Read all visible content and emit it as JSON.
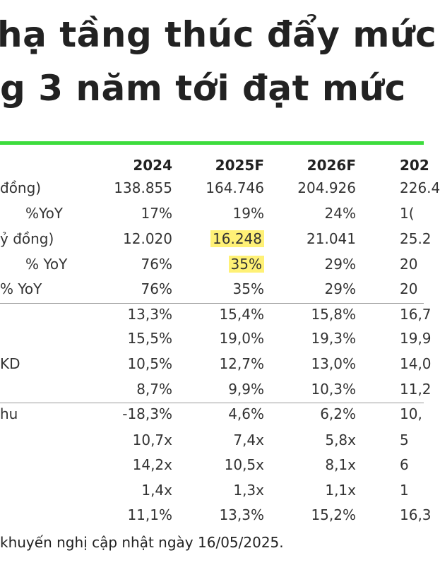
{
  "title_lines": [
    "hạ tầng thúc đẩy mức",
    "g 3 năm tới đạt mức"
  ],
  "accent_color": "#3ddc3d",
  "highlight_color": "#fff176",
  "table": {
    "headers": [
      "2024",
      "2025F",
      "2026F",
      "202"
    ],
    "rows": [
      {
        "label": "đồng)",
        "values": [
          "138.855",
          "164.746",
          "204.926",
          "226.4"
        ],
        "highlight": []
      },
      {
        "label": "%YoY",
        "values": [
          "17%",
          "19%",
          "24%",
          "1("
        ],
        "highlight": []
      },
      {
        "label": "ỷ đồng)",
        "values": [
          "12.020",
          "16.248",
          "21.041",
          "25.2"
        ],
        "highlight": [
          1
        ]
      },
      {
        "label": "% YoY",
        "values": [
          "76%",
          "35%",
          "29%",
          "20"
        ],
        "highlight": [
          1
        ]
      },
      {
        "label": "% YoY",
        "values": [
          "76%",
          "35%",
          "29%",
          "20"
        ],
        "highlight": []
      },
      {
        "label": "",
        "values": [
          "13,3%",
          "15,4%",
          "15,8%",
          "16,7"
        ],
        "highlight": []
      },
      {
        "label": "",
        "values": [
          "15,5%",
          "19,0%",
          "19,3%",
          "19,9"
        ],
        "highlight": []
      },
      {
        "label": "KD",
        "values": [
          "10,5%",
          "12,7%",
          "13,0%",
          "14,0"
        ],
        "highlight": []
      },
      {
        "label": "",
        "values": [
          "8,7%",
          "9,9%",
          "10,3%",
          "11,2"
        ],
        "highlight": []
      },
      {
        "label": "hu",
        "values": [
          "-18,3%",
          "4,6%",
          "6,2%",
          "10,"
        ],
        "highlight": []
      },
      {
        "label": "",
        "values": [
          "10,7x",
          "7,4x",
          "5,8x",
          "5"
        ],
        "highlight": []
      },
      {
        "label": "",
        "values": [
          "14,2x",
          "10,5x",
          "8,1x",
          "6"
        ],
        "highlight": []
      },
      {
        "label": "",
        "values": [
          "1,4x",
          "1,3x",
          "1,1x",
          "1"
        ],
        "highlight": []
      },
      {
        "label": "",
        "values": [
          "11,1%",
          "13,3%",
          "15,2%",
          "16,3"
        ],
        "highlight": []
      }
    ]
  },
  "footnote": "khuyến nghị cập nhật ngày 16/05/2025."
}
